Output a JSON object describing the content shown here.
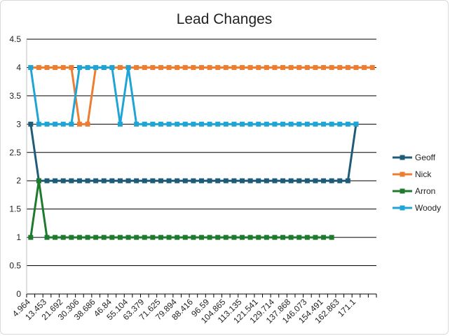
{
  "chart_data": {
    "type": "line",
    "title": "Lead Changes",
    "xlabel": "",
    "ylabel": "",
    "ylim": [
      0,
      4.5
    ],
    "yticks": [
      "0",
      "0.5",
      "1",
      "1.5",
      "2",
      "2.5",
      "3",
      "3.5",
      "4",
      "4.5"
    ],
    "grid": "horizontal",
    "legend_position": "right",
    "x_tick_labels": [
      "4.964",
      "13.453",
      "21.692",
      "30.306",
      "38.686",
      "46.84",
      "55.104",
      "63.379",
      "71.625",
      "79.894",
      "88.416",
      "96.59",
      "104.865",
      "113.135",
      "121.541",
      "129.714",
      "137.868",
      "146.073",
      "154.491",
      "162.863",
      "171.1"
    ],
    "num_categories": 43,
    "series": [
      {
        "name": "Geoff",
        "color": "#1f5c7a",
        "values": [
          3,
          2,
          2,
          2,
          2,
          2,
          2,
          2,
          2,
          2,
          2,
          2,
          2,
          2,
          2,
          2,
          2,
          2,
          2,
          2,
          2,
          2,
          2,
          2,
          2,
          2,
          2,
          2,
          2,
          2,
          2,
          2,
          2,
          2,
          2,
          2,
          2,
          2,
          2,
          2,
          3
        ]
      },
      {
        "name": "Nick",
        "color": "#ed7d31",
        "values": [
          4,
          4,
          4,
          4,
          4,
          4,
          3,
          3,
          4,
          4,
          4,
          4,
          4,
          4,
          4,
          4,
          4,
          4,
          4,
          4,
          4,
          4,
          4,
          4,
          4,
          4,
          4,
          4,
          4,
          4,
          4,
          4,
          4,
          4,
          4,
          4,
          4,
          4,
          4,
          4,
          4,
          4,
          4
        ]
      },
      {
        "name": "Arron",
        "color": "#1e7b2e",
        "values": [
          1,
          2,
          1,
          1,
          1,
          1,
          1,
          1,
          1,
          1,
          1,
          1,
          1,
          1,
          1,
          1,
          1,
          1,
          1,
          1,
          1,
          1,
          1,
          1,
          1,
          1,
          1,
          1,
          1,
          1,
          1,
          1,
          1,
          1,
          1,
          1,
          1,
          1
        ]
      },
      {
        "name": "Woody",
        "color": "#1fa4d6",
        "values": [
          4,
          3,
          3,
          3,
          3,
          3,
          4,
          4,
          4,
          4,
          4,
          3,
          4,
          3,
          3,
          3,
          3,
          3,
          3,
          3,
          3,
          3,
          3,
          3,
          3,
          3,
          3,
          3,
          3,
          3,
          3,
          3,
          3,
          3,
          3,
          3,
          3,
          3,
          3,
          3,
          3
        ]
      }
    ]
  }
}
